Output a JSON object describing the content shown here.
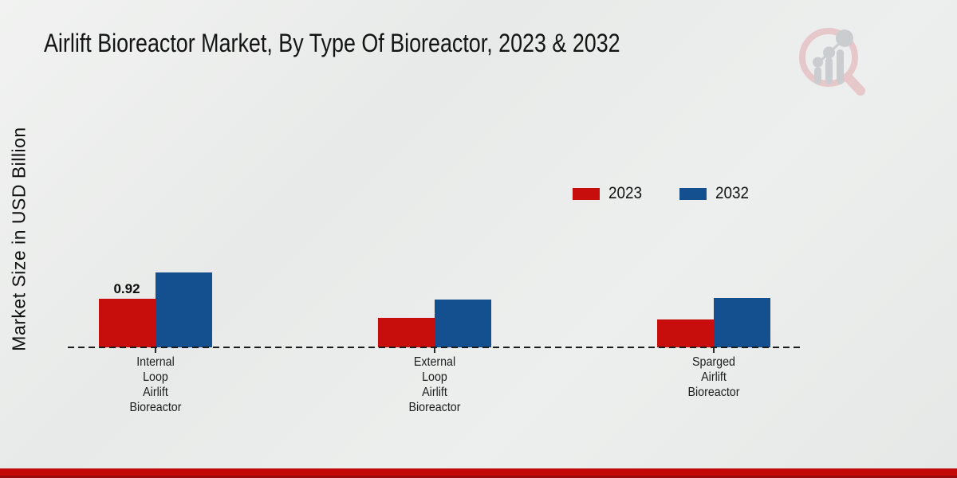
{
  "page": {
    "title": "Airlift Bioreactor Market, By Type Of Bioreactor, 2023 & 2032",
    "background_color": "#e9ebea",
    "footer_bar_color": "#c30808",
    "footer_bar_edge_color": "#9a0a0c",
    "logo": {
      "name": "magnifier-bar-chart-logo",
      "ring_color": "#e6c8cb",
      "bars_color": "#c9cdd0"
    }
  },
  "chart_data": {
    "type": "bar",
    "title": "Airlift Bioreactor Market, By Type Of Bioreactor, 2023 & 2032",
    "xlabel": "",
    "ylabel": "Market Size in USD Billion",
    "categories": [
      [
        "Internal",
        "Loop",
        "Airlift",
        "Bioreactor"
      ],
      [
        "External",
        "Loop",
        "Airlift",
        "Bioreactor"
      ],
      [
        "Sparged",
        "Airlift",
        "Bioreactor"
      ]
    ],
    "series": [
      {
        "name": "2023",
        "color": "#c80d0d",
        "values": [
          0.92,
          0.56,
          0.53
        ]
      },
      {
        "name": "2032",
        "color": "#14508f",
        "values": [
          1.42,
          0.91,
          0.94
        ]
      }
    ],
    "data_labels": [
      {
        "series": 0,
        "category": 0,
        "text": "0.92"
      }
    ],
    "ylim": [
      0,
      1.6
    ],
    "grid": false,
    "y_axis_ticks_visible": false,
    "baseline_style": "dashed",
    "legend_position": "upper-right"
  }
}
